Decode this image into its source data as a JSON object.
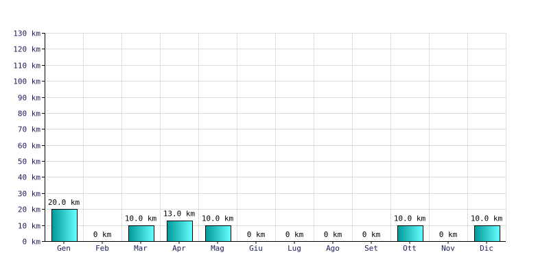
{
  "chart_data": {
    "type": "bar",
    "categories": [
      "Gen",
      "Feb",
      "Mar",
      "Apr",
      "Mag",
      "Giu",
      "Lug",
      "Ago",
      "Set",
      "Ott",
      "Nov",
      "Dic"
    ],
    "values": [
      20,
      0,
      10,
      13,
      10,
      0,
      0,
      0,
      0,
      10,
      0,
      10
    ],
    "data_labels": [
      "20.0 km",
      "0 km",
      "10.0 km",
      "13.0 km",
      "10.0 km",
      "0 km",
      "0 km",
      "0 km",
      "0 km",
      "10.0 km",
      "0 km",
      "10.0 km"
    ],
    "y_ticks": [
      0,
      10,
      20,
      30,
      40,
      50,
      60,
      70,
      80,
      90,
      100,
      110,
      120,
      130
    ],
    "y_tick_labels": [
      "0 km",
      "10 km",
      "20 km",
      "30 km",
      "40 km",
      "50 km",
      "60 km",
      "70 km",
      "80 km",
      "90 km",
      "100 km",
      "110 km",
      "120 km",
      "130 km"
    ],
    "ylim": [
      0,
      130
    ],
    "grid": true,
    "colors": {
      "bar_dark": "#009a9a",
      "bar_light": "#66ffff",
      "bar_edge": "#000000",
      "grid": "#dcdcdc",
      "axis": "#000000"
    }
  }
}
